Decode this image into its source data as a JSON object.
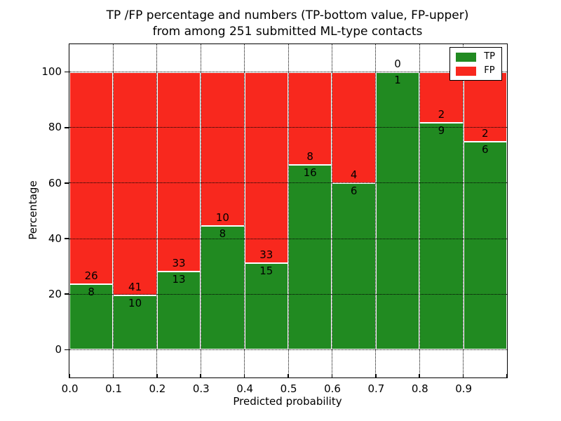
{
  "title": {
    "line1": "TP /FP percentage and numbers (TP-bottom value, FP-upper)",
    "line2": "from among 251 submitted ML-type contacts"
  },
  "chart_data": {
    "type": "bar",
    "stacked": true,
    "normalized_to_percent": true,
    "title": "TP /FP percentage and numbers (TP-bottom value, FP-upper)\nfrom among 251 submitted ML-type contacts",
    "xlabel": "Predicted probability",
    "ylabel": "Percentage",
    "total_submitted": 251,
    "bin_width": 0.1,
    "categories": [
      "0.0",
      "0.1",
      "0.2",
      "0.3",
      "0.4",
      "0.5",
      "0.6",
      "0.7",
      "0.8",
      "0.9"
    ],
    "series": [
      {
        "name": "TP",
        "color": "#218a21",
        "values": [
          8,
          10,
          13,
          8,
          15,
          16,
          6,
          1,
          9,
          6
        ]
      },
      {
        "name": "FP",
        "color": "#f8281e",
        "values": [
          26,
          41,
          33,
          10,
          33,
          8,
          4,
          0,
          2,
          2
        ]
      }
    ],
    "tp_percent": [
      23.5,
      19.6,
      28.3,
      44.4,
      31.3,
      66.7,
      60.0,
      100.0,
      81.8,
      75.0
    ],
    "xlim": [
      0,
      1
    ],
    "ylim": [
      -10,
      110
    ],
    "yticks": [
      0,
      20,
      40,
      60,
      80,
      100
    ],
    "xticks": [
      "0.0",
      "0.1",
      "0.2",
      "0.3",
      "0.4",
      "0.5",
      "0.6",
      "0.7",
      "0.8",
      "0.9"
    ],
    "grid": "dotted",
    "legend": {
      "position": "upper-right",
      "entries": [
        {
          "label": "TP",
          "color": "#218a21"
        },
        {
          "label": "FP",
          "color": "#f8281e"
        }
      ]
    }
  }
}
